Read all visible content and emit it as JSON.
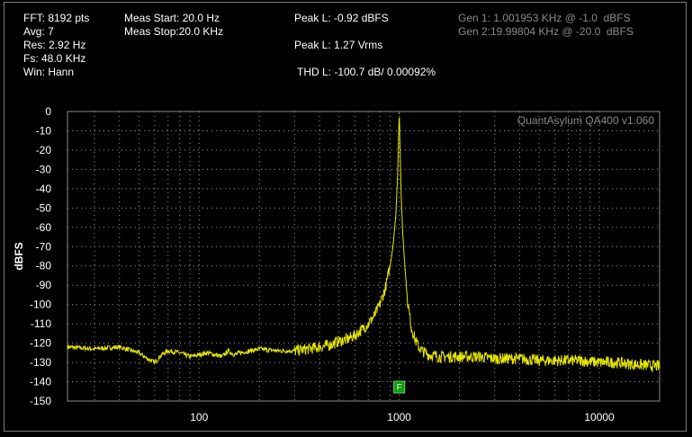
{
  "info": {
    "fft": "FFT: 8192 pts",
    "avg": "Avg: 7",
    "res": "Res: 2.92 Hz",
    "fs": "Fs: 48.0 KHz",
    "win": "Win: Hann",
    "meas_start": "Meas Start: 20.0 Hz",
    "meas_stop": "Meas Stop:20.0 KHz",
    "peak_dbfs": "Peak L: -0.92 dBFS",
    "peak_vrms": "Peak L: 1.27 Vrms",
    "thd": "THD L: -100.7 dB/ 0.00092%",
    "gen1": "Gen 1: 1.001953 KHz @ -1.0  dBFS",
    "gen2": "Gen 2:19.99804 KHz @ -20.0  dBFS"
  },
  "watermark": "QuantAsylum QA400 v1.060",
  "marker_label": "F",
  "chart_data": {
    "type": "line",
    "title": "",
    "xlabel": "",
    "ylabel": "dBFS",
    "x_scale": "log",
    "xlim": [
      22,
      20000
    ],
    "ylim": [
      -150,
      0
    ],
    "y_ticks": [
      0,
      -10,
      -20,
      -30,
      -40,
      -50,
      -60,
      -70,
      -80,
      -90,
      -100,
      -110,
      -120,
      -130,
      -140,
      -150
    ],
    "y_tick_labels": [
      "0",
      "-10",
      "-20",
      "-30",
      "-40",
      "-50",
      "-60",
      "-70",
      "-80",
      "-90",
      "-100",
      "-110",
      "-120",
      "-130",
      "-140",
      "-150"
    ],
    "x_ticks": [
      100,
      1000,
      10000
    ],
    "x_tick_labels": [
      "100",
      "1000",
      "10000"
    ],
    "grid": true,
    "series": [
      {
        "color": "#e6e600",
        "x": [
          22,
          30,
          40,
          50,
          55,
          60,
          65,
          70,
          80,
          90,
          100,
          110,
          120,
          130,
          140,
          150,
          160,
          180,
          200,
          250,
          300,
          350,
          400,
          450,
          500,
          550,
          600,
          650,
          700,
          750,
          800,
          850,
          900,
          930,
          960,
          980,
          990,
          995,
          1000,
          1002,
          1005,
          1010,
          1020,
          1040,
          1070,
          1100,
          1150,
          1200,
          1250,
          1300,
          1400,
          1600,
          2000,
          2500,
          3000,
          4000,
          5000,
          6000,
          8000,
          10000,
          12000,
          15000,
          20000
        ],
        "y": [
          -122,
          -123,
          -122,
          -125,
          -128,
          -130,
          -126,
          -124,
          -125,
          -127,
          -126,
          -125,
          -126,
          -127,
          -124,
          -126,
          -125,
          -124,
          -123,
          -124,
          -124,
          -123,
          -122,
          -121,
          -119,
          -118,
          -116,
          -113,
          -110,
          -106,
          -100,
          -92,
          -80,
          -70,
          -55,
          -35,
          -18,
          -8,
          -1,
          -1,
          -8,
          -20,
          -40,
          -62,
          -82,
          -98,
          -112,
          -118,
          -122,
          -124,
          -126,
          -127,
          -127,
          -127,
          -128,
          -128,
          -129,
          -129,
          -129,
          -130,
          -130,
          -131,
          -132
        ]
      }
    ]
  }
}
